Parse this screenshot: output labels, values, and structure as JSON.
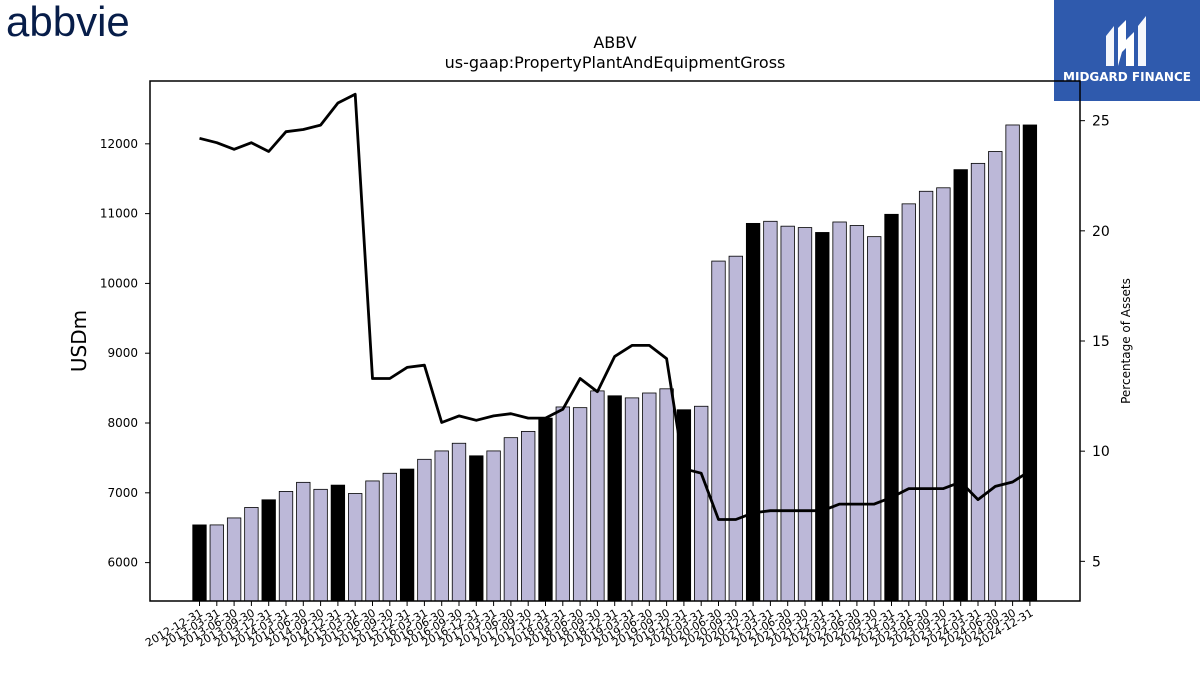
{
  "brand_left": {
    "name": "abbvie",
    "color": "#071d49"
  },
  "brand_right": {
    "name": "MIDGARD FINANCE",
    "bg_color": "#2f5aad"
  },
  "chart_data": {
    "type": "bar",
    "title": "ABBV",
    "subtitle": "us-gaap:PropertyPlantAndEquipmentGross",
    "ylabel": "USDm",
    "y2label": "Percentage of Assets",
    "ylim": [
      5450,
      12900
    ],
    "y2lim": [
      3.2,
      26.8
    ],
    "yticks": [
      6000,
      7000,
      8000,
      9000,
      10000,
      11000,
      12000
    ],
    "y2ticks": [
      5,
      10,
      15,
      20,
      25
    ],
    "colors": {
      "bar_regular": "#bcb8d8",
      "bar_year_end": "#000000",
      "line": "#000000"
    },
    "categories": [
      "2012-12-31",
      "2013-03-31",
      "2013-06-30",
      "2013-09-30",
      "2013-12-31",
      "2014-03-31",
      "2014-06-30",
      "2014-09-30",
      "2014-12-31",
      "2015-03-31",
      "2015-06-30",
      "2015-09-30",
      "2015-12-31",
      "2016-03-31",
      "2016-06-30",
      "2016-09-30",
      "2016-12-31",
      "2017-03-31",
      "2017-06-30",
      "2017-09-30",
      "2017-12-31",
      "2018-03-31",
      "2018-06-30",
      "2018-09-30",
      "2018-12-31",
      "2019-03-31",
      "2019-06-30",
      "2019-09-30",
      "2019-12-31",
      "2020-03-31",
      "2020-06-30",
      "2020-09-30",
      "2020-12-31",
      "2021-03-31",
      "2021-06-30",
      "2021-09-30",
      "2021-12-31",
      "2022-03-31",
      "2022-06-30",
      "2022-09-30",
      "2022-12-31",
      "2023-03-31",
      "2023-06-30",
      "2023-09-30",
      "2023-12-31",
      "2024-03-31",
      "2024-06-30",
      "2024-09-30",
      "2024-12-31"
    ],
    "values": [
      6540,
      6540,
      6640,
      6790,
      6900,
      7020,
      7150,
      7050,
      7110,
      6990,
      7170,
      7280,
      7340,
      7480,
      7600,
      7710,
      7530,
      7600,
      7790,
      7880,
      8070,
      8230,
      8220,
      8460,
      8390,
      8360,
      8430,
      8490,
      8190,
      8240,
      10320,
      10390,
      10860,
      10890,
      10820,
      10800,
      10730,
      10880,
      10830,
      10670,
      10990,
      11140,
      11320,
      11370,
      11630,
      11720,
      11890,
      12270,
      12270
    ],
    "year_end": [
      true,
      false,
      false,
      false,
      true,
      false,
      false,
      false,
      true,
      false,
      false,
      false,
      true,
      false,
      false,
      false,
      true,
      false,
      false,
      false,
      true,
      false,
      false,
      false,
      true,
      false,
      false,
      false,
      true,
      false,
      false,
      false,
      true,
      false,
      false,
      false,
      true,
      false,
      false,
      false,
      true,
      false,
      false,
      false,
      true,
      false,
      false,
      false,
      true
    ],
    "line_series": {
      "name": "Percentage of Assets",
      "values": [
        24.2,
        24.0,
        23.7,
        24.0,
        23.6,
        24.5,
        24.6,
        24.8,
        25.8,
        26.2,
        13.3,
        13.3,
        13.8,
        13.9,
        11.3,
        11.6,
        11.4,
        11.6,
        11.7,
        11.5,
        11.5,
        11.9,
        13.3,
        12.7,
        14.3,
        14.8,
        14.8,
        14.2,
        9.2,
        9.0,
        6.9,
        6.9,
        7.2,
        7.3,
        7.3,
        7.3,
        7.3,
        7.6,
        7.6,
        7.6,
        7.9,
        8.3,
        8.3,
        8.3,
        8.6,
        7.8,
        8.4,
        8.6,
        9.1
      ]
    }
  }
}
